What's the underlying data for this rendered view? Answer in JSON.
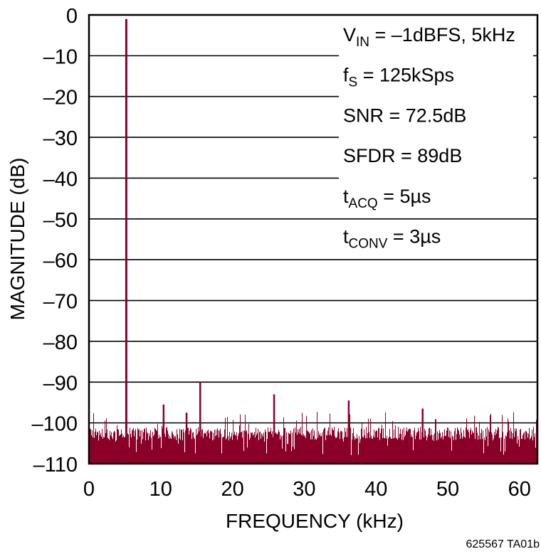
{
  "chart_data": {
    "type": "bar",
    "subtype": "fft-spectrum",
    "title": "",
    "xlabel": "FREQUENCY (kHz)",
    "ylabel": "MAGNITUDE (dB)",
    "xlim": [
      0,
      62.5
    ],
    "ylim": [
      -110,
      0
    ],
    "x_ticks": [
      0,
      10,
      20,
      30,
      40,
      50,
      60
    ],
    "x_tick_labels": [
      "0",
      "10",
      "20",
      "30",
      "40",
      "50",
      "60"
    ],
    "y_ticks": [
      0,
      -10,
      -20,
      -30,
      -40,
      -50,
      -60,
      -70,
      -80,
      -90,
      -100,
      -110
    ],
    "y_tick_labels": [
      "0",
      "–10",
      "–20",
      "–30",
      "–40",
      "–50",
      "–60",
      "–70",
      "–80",
      "–90",
      "–100",
      "–110"
    ],
    "grid": {
      "horizontal": true,
      "vertical": false
    },
    "series_color": "#8b0029",
    "annotations": [
      {
        "main": "V",
        "sub": "IN",
        "rest": " = –1dBFS, 5kHz"
      },
      {
        "main": "f",
        "sub": "S",
        "rest": " = 125kSps"
      },
      {
        "main": "SNR = 72.5dB",
        "sub": "",
        "rest": ""
      },
      {
        "main": "SFDR = 89dB",
        "sub": "",
        "rest": ""
      },
      {
        "main": "t",
        "sub": "ACQ",
        "rest": " = 5µs"
      },
      {
        "main": "t",
        "sub": "CONV",
        "rest": " = 3µs"
      }
    ],
    "peaks": [
      {
        "label": "fundamental",
        "freq_khz": 5.2,
        "db": -1
      },
      {
        "label": "spur",
        "freq_khz": 10.4,
        "db": -95.5
      },
      {
        "label": "spur",
        "freq_khz": 13.6,
        "db": -97.5
      },
      {
        "label": "spur",
        "freq_khz": 15.5,
        "db": -90
      },
      {
        "label": "spur",
        "freq_khz": 25.8,
        "db": -93
      },
      {
        "label": "spur",
        "freq_khz": 36.2,
        "db": -94.5
      },
      {
        "label": "spur",
        "freq_khz": 46.5,
        "db": -96.5
      }
    ],
    "noise_floor": {
      "typical_db_range": [
        -110,
        -101
      ],
      "max_excursion_db": -97
    },
    "figure_id": "625567 TA01b"
  }
}
